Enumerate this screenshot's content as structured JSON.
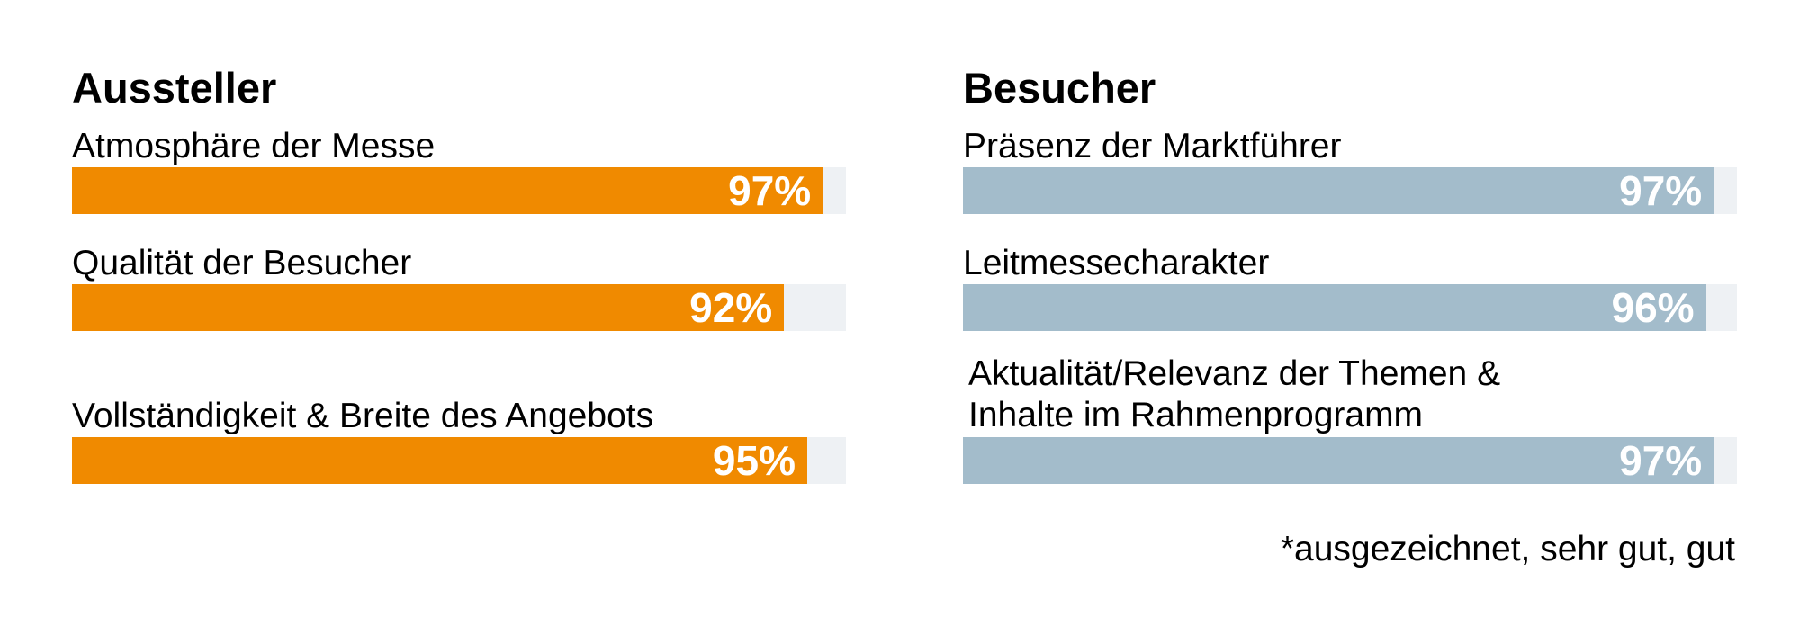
{
  "chart_data": [
    {
      "type": "bar",
      "orientation": "horizontal",
      "title": "Aussteller",
      "bar_color": "#f08a00",
      "track_color": "#eef1f4",
      "xlim": [
        0,
        100
      ],
      "categories": [
        "Atmosphäre der Messe",
        "Qualität der Besucher",
        "Vollständigkeit & Breite des Angebots"
      ],
      "values": [
        97,
        92,
        95
      ],
      "value_labels": [
        "97%",
        "92%",
        "95%"
      ]
    },
    {
      "type": "bar",
      "orientation": "horizontal",
      "title": "Besucher",
      "bar_color": "#a3bccb",
      "track_color": "#eef1f4",
      "xlim": [
        0,
        100
      ],
      "categories": [
        "Präsenz der Marktführer",
        "Leitmessecharakter",
        [
          "Aktualität/Relevanz der Themen &",
          "Inhalte im Rahmenprogramm"
        ]
      ],
      "values": [
        97,
        96,
        97
      ],
      "value_labels": [
        "97%",
        "96%",
        "97%"
      ]
    }
  ],
  "footnote": "*ausgezeichnet, sehr gut, gut"
}
